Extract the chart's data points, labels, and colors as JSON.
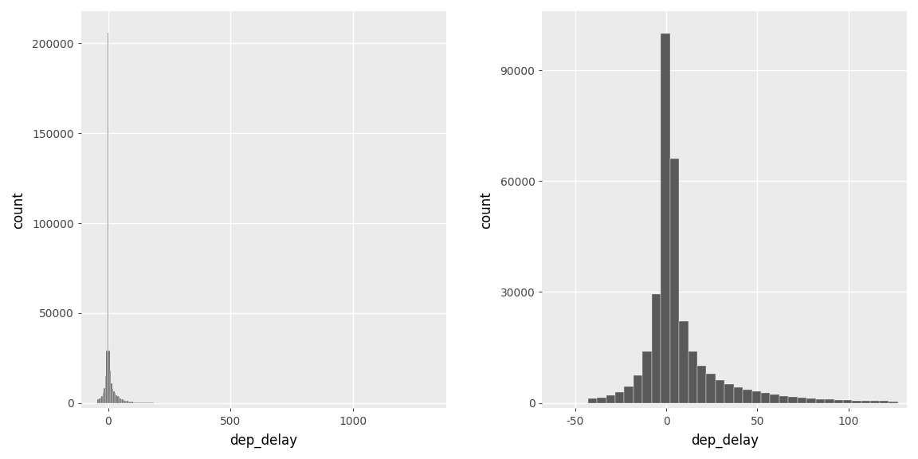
{
  "background_color": "#EBEBEB",
  "bar_color": "#595959",
  "bar_edgecolor": "#EBEBEB",
  "bar_linewidth": 0.3,
  "plot1": {
    "xlabel": "dep_delay",
    "ylabel": "count",
    "xlim": [
      -110,
      1380
    ],
    "ylim": [
      -3000,
      218000
    ],
    "xticks": [
      0,
      500,
      1000
    ],
    "yticks": [
      0,
      50000,
      100000,
      150000,
      200000
    ],
    "ytick_labels": [
      "0",
      "50000",
      "100000",
      "150000",
      "200000"
    ],
    "bin_width": 5,
    "bins_data": [
      [
        -43,
        2000
      ],
      [
        -38,
        2500
      ],
      [
        -33,
        3000
      ],
      [
        -28,
        4000
      ],
      [
        -23,
        5500
      ],
      [
        -18,
        8500
      ],
      [
        -13,
        15000
      ],
      [
        -8,
        29000
      ],
      [
        -3,
        206000
      ],
      [
        2,
        29000
      ],
      [
        7,
        18000
      ],
      [
        12,
        11000
      ],
      [
        17,
        8000
      ],
      [
        22,
        6500
      ],
      [
        27,
        5500
      ],
      [
        32,
        4500
      ],
      [
        37,
        3800
      ],
      [
        42,
        3200
      ],
      [
        47,
        2700
      ],
      [
        52,
        2300
      ],
      [
        57,
        1900
      ],
      [
        62,
        1600
      ],
      [
        67,
        1400
      ],
      [
        72,
        1200
      ],
      [
        77,
        1050
      ],
      [
        82,
        900
      ],
      [
        87,
        780
      ],
      [
        92,
        680
      ],
      [
        97,
        600
      ],
      [
        102,
        530
      ],
      [
        107,
        470
      ],
      [
        112,
        420
      ],
      [
        117,
        375
      ],
      [
        122,
        335
      ],
      [
        127,
        300
      ],
      [
        132,
        270
      ],
      [
        137,
        245
      ],
      [
        142,
        220
      ],
      [
        147,
        200
      ],
      [
        152,
        180
      ],
      [
        157,
        162
      ],
      [
        162,
        148
      ],
      [
        167,
        135
      ],
      [
        172,
        122
      ],
      [
        177,
        112
      ],
      [
        182,
        102
      ],
      [
        187,
        93
      ],
      [
        192,
        85
      ],
      [
        197,
        78
      ],
      [
        202,
        72
      ],
      [
        207,
        66
      ],
      [
        212,
        61
      ],
      [
        217,
        57
      ],
      [
        222,
        53
      ],
      [
        227,
        49
      ],
      [
        232,
        46
      ],
      [
        237,
        43
      ],
      [
        242,
        40
      ],
      [
        247,
        37
      ],
      [
        252,
        35
      ],
      [
        257,
        33
      ],
      [
        262,
        31
      ],
      [
        267,
        29
      ],
      [
        272,
        27
      ],
      [
        277,
        25
      ],
      [
        282,
        23
      ],
      [
        287,
        22
      ],
      [
        292,
        20
      ],
      [
        297,
        18
      ],
      [
        302,
        17
      ],
      [
        307,
        15
      ],
      [
        312,
        14
      ],
      [
        317,
        13
      ],
      [
        322,
        12
      ],
      [
        327,
        11
      ],
      [
        332,
        10
      ],
      [
        337,
        9
      ],
      [
        342,
        8
      ],
      [
        347,
        7
      ],
      [
        352,
        7
      ],
      [
        357,
        6
      ],
      [
        362,
        5
      ],
      [
        367,
        5
      ],
      [
        372,
        4
      ],
      [
        377,
        4
      ],
      [
        382,
        3
      ],
      [
        387,
        3
      ],
      [
        392,
        3
      ],
      [
        397,
        2
      ],
      [
        402,
        2
      ],
      [
        407,
        2
      ],
      [
        412,
        2
      ],
      [
        417,
        2
      ],
      [
        422,
        1
      ],
      [
        427,
        1
      ],
      [
        432,
        1
      ],
      [
        437,
        1
      ],
      [
        442,
        1
      ],
      [
        447,
        1
      ],
      [
        452,
        1
      ],
      [
        457,
        1
      ],
      [
        462,
        1
      ]
    ]
  },
  "plot2": {
    "xlabel": "dep_delay",
    "ylabel": "count",
    "xlim": [
      -68,
      132
    ],
    "ylim": [
      -1500,
      106000
    ],
    "xticks": [
      -50,
      0,
      50,
      100
    ],
    "yticks": [
      0,
      30000,
      60000,
      90000
    ],
    "ytick_labels": [
      "0",
      "30000",
      "60000",
      "90000"
    ],
    "bin_width": 5,
    "bins_data": [
      [
        -43,
        1200
      ],
      [
        -38,
        1500
      ],
      [
        -33,
        2000
      ],
      [
        -28,
        3000
      ],
      [
        -23,
        4500
      ],
      [
        -18,
        7500
      ],
      [
        -13,
        14000
      ],
      [
        -8,
        29500
      ],
      [
        -3,
        100000
      ],
      [
        2,
        66000
      ],
      [
        7,
        22000
      ],
      [
        12,
        14000
      ],
      [
        17,
        10000
      ],
      [
        22,
        7800
      ],
      [
        27,
        6200
      ],
      [
        32,
        5000
      ],
      [
        37,
        4200
      ],
      [
        42,
        3600
      ],
      [
        47,
        3100
      ],
      [
        52,
        2600
      ],
      [
        57,
        2200
      ],
      [
        62,
        1900
      ],
      [
        67,
        1600
      ],
      [
        72,
        1400
      ],
      [
        77,
        1200
      ],
      [
        82,
        1050
      ],
      [
        87,
        920
      ],
      [
        92,
        810
      ],
      [
        97,
        720
      ],
      [
        102,
        640
      ],
      [
        107,
        570
      ],
      [
        112,
        500
      ],
      [
        117,
        440
      ],
      [
        122,
        380
      ]
    ]
  },
  "grid_color": "#FFFFFF",
  "grid_linewidth": 1.0,
  "tick_color": "#444444",
  "label_fontsize": 12,
  "tick_fontsize": 10,
  "outer_bg": "#FFFFFF",
  "panel_border_color": "#BEBEBE"
}
